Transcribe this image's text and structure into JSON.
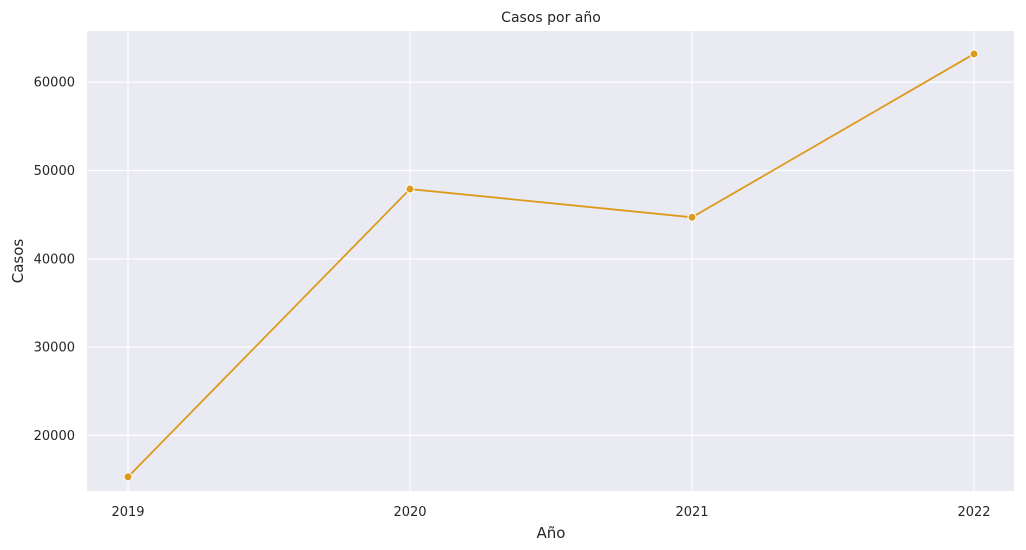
{
  "chart_data": {
    "type": "line",
    "title": "Casos por año",
    "xlabel": "Año",
    "ylabel": "Casos",
    "x": [
      "2019",
      "2020",
      "2021",
      "2022"
    ],
    "series": [
      {
        "values": [
          15300,
          47900,
          44700,
          63200
        ]
      }
    ],
    "ylim": [
      13700,
      65800
    ],
    "yticks": [
      20000,
      30000,
      40000,
      50000,
      60000
    ],
    "grid": true,
    "line_color": "#dd9a1c",
    "background_color": "#eaeaf2",
    "grid_color": "#ffffff"
  }
}
